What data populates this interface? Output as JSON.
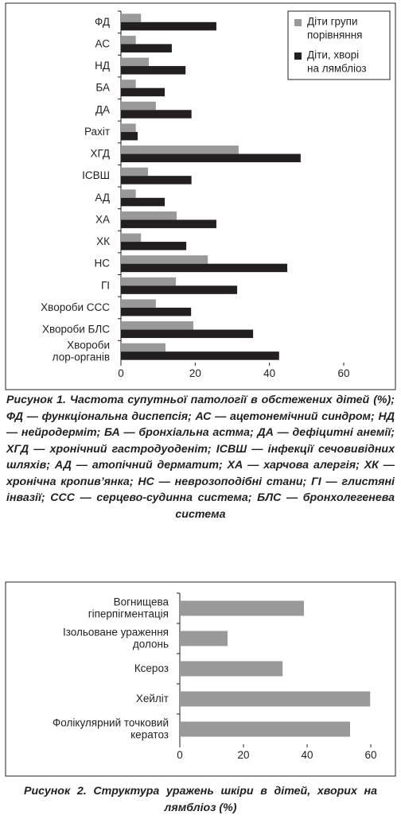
{
  "chart_data": [
    {
      "type": "bar",
      "orientation": "horizontal",
      "categories": [
        "ФД",
        "АС",
        "НД",
        "БА",
        "ДА",
        "Рахіт",
        "ХГД",
        "ІСВШ",
        "АД",
        "ХА",
        "ХК",
        "НС",
        "ГІ",
        "Хвороби ССС",
        "Хвороби БЛС",
        "Хвороби\nлор-органів"
      ],
      "series": [
        {
          "name": "Діти групи\nпорівняння",
          "color": "#999999",
          "values": [
            5.4,
            4,
            7.5,
            4,
            9.4,
            4,
            31.7,
            7.3,
            4,
            15,
            5.4,
            23.4,
            14.8,
            9.4,
            19.5,
            12
          ]
        },
        {
          "name": "Діти, хворі\nна лямбліоз",
          "color": "#231f20",
          "values": [
            25.7,
            13.7,
            17.4,
            11.8,
            19,
            4.5,
            48.4,
            19,
            11.8,
            25.7,
            17.6,
            44.8,
            31.3,
            18.9,
            35.6,
            42.6
          ]
        }
      ],
      "xlim": [
        0,
        60
      ],
      "xticks": [
        0,
        20,
        40,
        60
      ],
      "legend": "top-right",
      "caption": "Рисунок 1. Частота супутньої патології в обстежених дітей (%); ФД — функціональна диспепсія; АС — ацетонемічний синдром; НД — нейродерміт; БА — бронхіальна астма; ДА — дефіцитні анемії; ХГД — хронічний гастродуоденіт; ІСВШ — інфекції сечовивідних шляхів; АД — атопічний дерматит; ХА — харчова алергія; ХК — хронічна кропив’янка; НС — неврозоподібні стани; ГІ — глистяні інвазії; ССС — серцево-судинна система; БЛС — бронхолегенева система"
    },
    {
      "type": "bar",
      "orientation": "horizontal",
      "categories": [
        "Вогнищева\nгіперпігментація",
        "Ізольоване ураження\nдолонь",
        "Ксероз",
        "Хейліт",
        "Фолікулярний точковий\nкератоз"
      ],
      "values": [
        39,
        15,
        32.3,
        59.8,
        53.5
      ],
      "color": "#999999",
      "xlim": [
        0,
        60
      ],
      "xticks": [
        0,
        20,
        40,
        60
      ],
      "caption": "Рисунок 2. Структура уражень шкіри в дітей, хворих на лямбліоз (%)"
    }
  ]
}
